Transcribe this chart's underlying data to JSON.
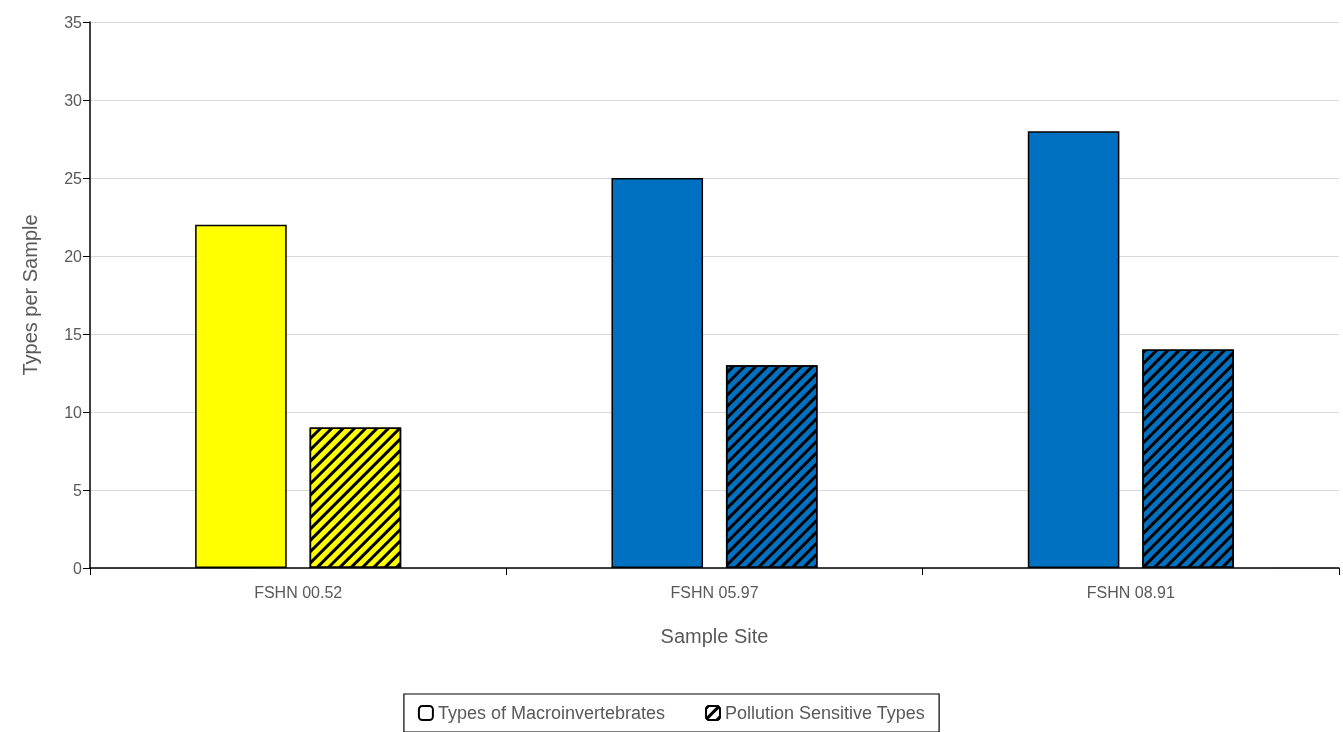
{
  "chart_data": {
    "type": "bar",
    "xlabel": "Sample Site",
    "ylabel": "Types per Sample",
    "categories": [
      "FSHN 00.52",
      "FSHN 05.97",
      "FSHN 08.91"
    ],
    "series": [
      {
        "name": "Types of Macroinvertebrates",
        "color": "#ffffff",
        "colors": [
          "#ffff00",
          "#0070c0",
          "#0070c0"
        ],
        "values": [
          22,
          25,
          28
        ]
      },
      {
        "name": "Pollution Sensitive Types",
        "color": "#ffffff",
        "colors": [
          "#ffff00",
          "#0070c0",
          "#0070c0"
        ],
        "values": [
          9,
          13,
          14
        ]
      }
    ],
    "ylim": [
      0,
      35
    ],
    "yticks": [
      0,
      5,
      10,
      15,
      20,
      25,
      30,
      35
    ],
    "grid": "y",
    "legend": "bottom"
  }
}
